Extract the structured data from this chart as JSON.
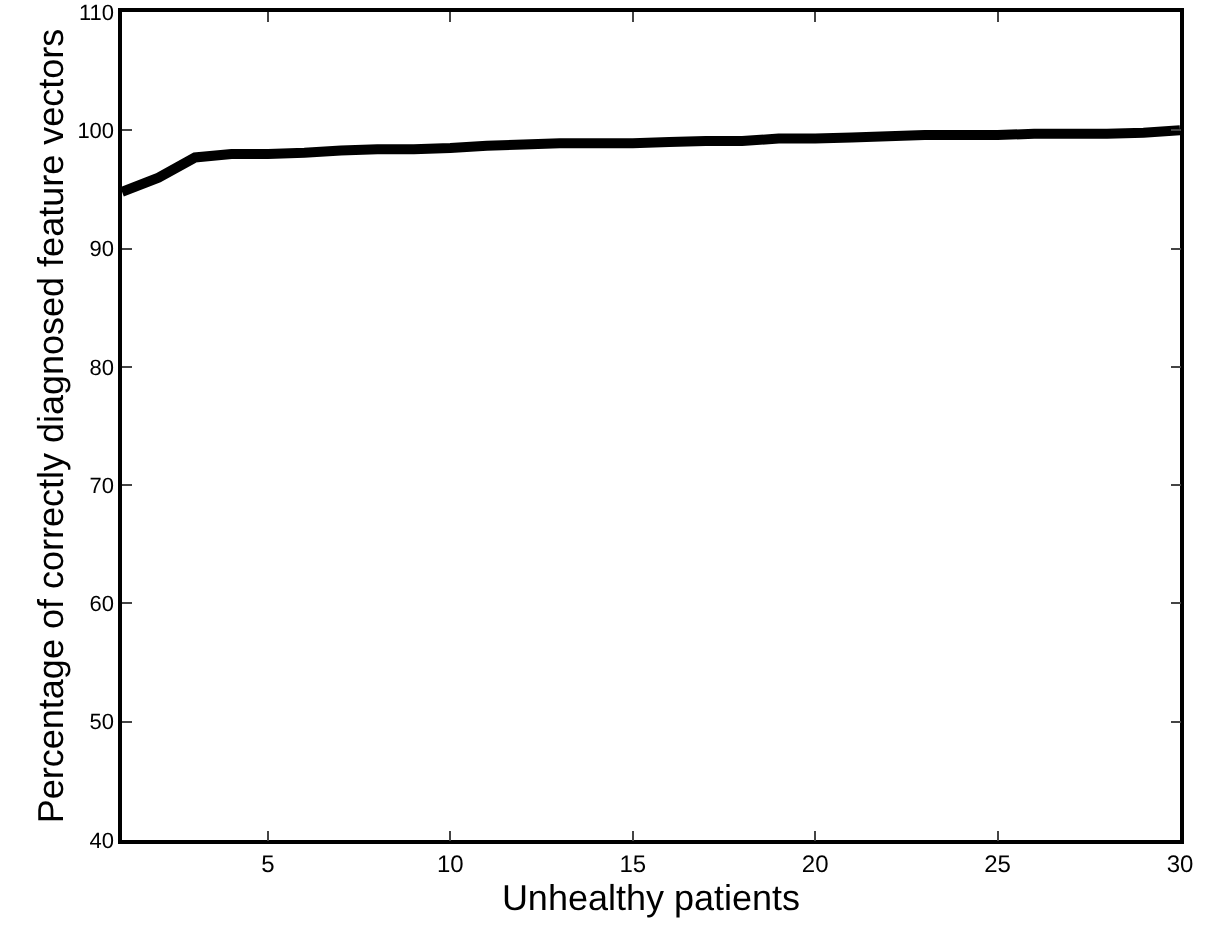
{
  "chart_data": {
    "type": "line",
    "xlabel": "Unhealthy patients",
    "ylabel": "Percentage of correctly diagnosed feature vectors",
    "x": [
      1,
      2,
      3,
      4,
      5,
      6,
      7,
      8,
      9,
      10,
      11,
      12,
      13,
      14,
      15,
      16,
      17,
      18,
      19,
      20,
      21,
      22,
      23,
      24,
      25,
      26,
      27,
      28,
      29,
      30
    ],
    "series": [
      {
        "color": "#000000",
        "values": [
          94.8,
          96,
          97.7,
          98,
          98,
          98.1,
          98.3,
          98.4,
          98.4,
          98.5,
          98.7,
          98.8,
          98.9,
          98.9,
          98.9,
          99,
          99.1,
          99.1,
          99.3,
          99.3,
          99.4,
          99.5,
          99.6,
          99.6,
          99.6,
          99.7,
          99.7,
          99.7,
          99.8,
          100
        ]
      }
    ],
    "xlim": [
      1,
      30
    ],
    "xticks": [
      5,
      10,
      15,
      20,
      25,
      30
    ],
    "ylim": [
      40,
      110
    ],
    "yticks": [
      40,
      50,
      60,
      70,
      80,
      90,
      100,
      110
    ],
    "grid": false,
    "marker": "none",
    "line_style": "solid"
  }
}
